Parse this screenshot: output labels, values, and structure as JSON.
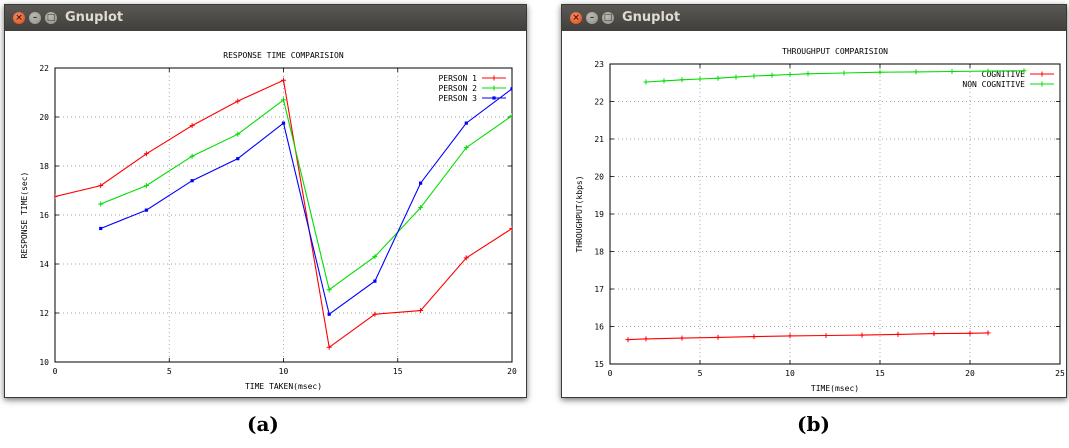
{
  "windows": [
    {
      "title": "Gnuplot",
      "caption": "(a)",
      "chart": {
        "type": "line",
        "title": "RESPONSE TIME COMPARISION",
        "xlabel": "TIME TAKEN(msec)",
        "ylabel": "RESPONSE TIME(sec)",
        "xlim": [
          0,
          20
        ],
        "ylim": [
          10,
          22
        ],
        "xticks": [
          "0",
          "5",
          "10",
          "15",
          "20"
        ],
        "yticks": [
          "10",
          "12",
          "14",
          "16",
          "18",
          "20",
          "22"
        ],
        "grid": true,
        "legend": "top-right",
        "series": [
          {
            "name": "PERSON 1",
            "color": "#ff0000",
            "points": [
              [
                0,
                16.75
              ],
              [
                2,
                17.2
              ],
              [
                4,
                18.5
              ],
              [
                6,
                19.65
              ],
              [
                8,
                20.65
              ],
              [
                10,
                21.5
              ],
              [
                12,
                10.6
              ],
              [
                14,
                11.95
              ],
              [
                16,
                12.1
              ],
              [
                18,
                14.25
              ],
              [
                20,
                15.45
              ]
            ]
          },
          {
            "name": "PERSON 2",
            "color": "#00dd00",
            "points": [
              [
                2,
                16.45
              ],
              [
                4,
                17.2
              ],
              [
                6,
                18.4
              ],
              [
                8,
                19.3
              ],
              [
                10,
                20.7
              ],
              [
                12,
                12.95
              ],
              [
                14,
                14.3
              ],
              [
                16,
                16.3
              ],
              [
                18,
                18.75
              ],
              [
                20,
                20.05
              ]
            ]
          },
          {
            "name": "PERSON 3",
            "color": "#0000ff",
            "points": [
              [
                2,
                15.45
              ],
              [
                4,
                16.2
              ],
              [
                6,
                17.4
              ],
              [
                8,
                18.3
              ],
              [
                10,
                19.75
              ],
              [
                12,
                11.95
              ],
              [
                14,
                13.3
              ],
              [
                16,
                17.3
              ],
              [
                18,
                19.75
              ],
              [
                20,
                21.15
              ]
            ]
          }
        ]
      }
    },
    {
      "title": "Gnuplot",
      "caption": "(b)",
      "chart": {
        "type": "line",
        "title": "THROUGHPUT COMPARISION",
        "xlabel": "TIME(msec)",
        "ylabel": "THROUGHPUT(kbps)",
        "xlim": [
          0,
          25
        ],
        "ylim": [
          15,
          23
        ],
        "xticks": [
          "0",
          "5",
          "10",
          "15",
          "20",
          "25"
        ],
        "yticks": [
          "15",
          "16",
          "17",
          "18",
          "19",
          "20",
          "21",
          "22",
          "23"
        ],
        "grid": true,
        "legend": "top-right",
        "series": [
          {
            "name": "COGNITIVE",
            "color": "#ff0000",
            "points": [
              [
                1,
                15.65
              ],
              [
                2,
                15.67
              ],
              [
                4,
                15.69
              ],
              [
                6,
                15.71
              ],
              [
                8,
                15.73
              ],
              [
                10,
                15.75
              ],
              [
                12,
                15.76
              ],
              [
                14,
                15.77
              ],
              [
                16,
                15.79
              ],
              [
                18,
                15.81
              ],
              [
                20,
                15.82
              ],
              [
                21,
                15.83
              ]
            ]
          },
          {
            "name": "NON COGNITIVE",
            "color": "#00dd00",
            "points": [
              [
                2,
                22.52
              ],
              [
                3,
                22.55
              ],
              [
                4,
                22.58
              ],
              [
                5,
                22.6
              ],
              [
                6,
                22.62
              ],
              [
                7,
                22.65
              ],
              [
                8,
                22.68
              ],
              [
                9,
                22.7
              ],
              [
                10,
                22.72
              ],
              [
                11,
                22.74
              ],
              [
                13,
                22.76
              ],
              [
                15,
                22.78
              ],
              [
                17,
                22.79
              ],
              [
                19,
                22.8
              ],
              [
                21,
                22.81
              ],
              [
                23,
                22.82
              ]
            ]
          }
        ]
      }
    }
  ]
}
